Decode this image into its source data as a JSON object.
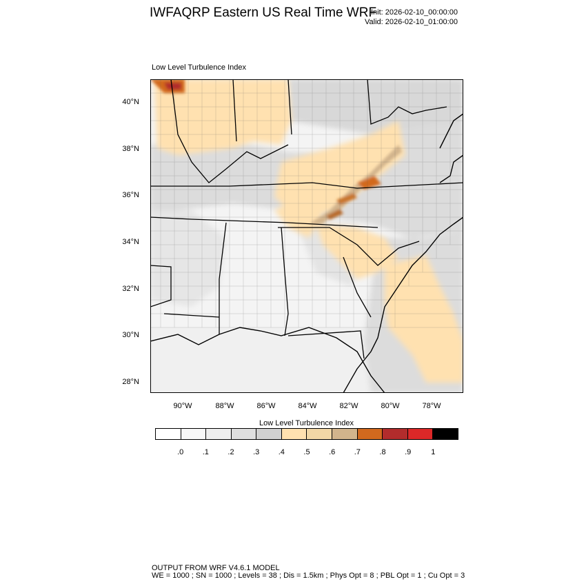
{
  "header": {
    "title": "IWFAQRP Eastern US Real Time WRF",
    "init": "Init: 2026-02-10_00:00:00",
    "valid": "Valid: 2026-02-10_01:00:00"
  },
  "plot_title": "Low Level Turbulence Index",
  "axes": {
    "lat_labels": [
      "40°N",
      "38°N",
      "36°N",
      "34°N",
      "32°N",
      "30°N",
      "28°N"
    ],
    "lon_labels": [
      "90°W",
      "88°W",
      "86°W",
      "84°W",
      "82°W",
      "80°W",
      "78°W"
    ]
  },
  "colorbar": {
    "title": "Low Level Turbulence Index",
    "colors": [
      "#ffffff",
      "#f7f7f7",
      "#eeeeee",
      "#dedede",
      "#d0d0d0",
      "#ffe1b0",
      "#f2d7a6",
      "#d2b48c",
      "#d2691e",
      "#b22c2c",
      "#dc2828",
      "#000000"
    ],
    "tick_labels": [
      ".0",
      ".1",
      ".2",
      ".3",
      ".4",
      ".5",
      ".6",
      ".7",
      ".8",
      ".9",
      "1"
    ]
  },
  "footer": {
    "line1": "OUTPUT FROM WRF V4.6.1 MODEL",
    "line2": "WE = 1000 ; SN = 1000 ; Levels = 38 ; Dis = 1.5km ; Phys Opt = 8 ; PBL Opt = 1 ; Cu Opt = 3"
  }
}
